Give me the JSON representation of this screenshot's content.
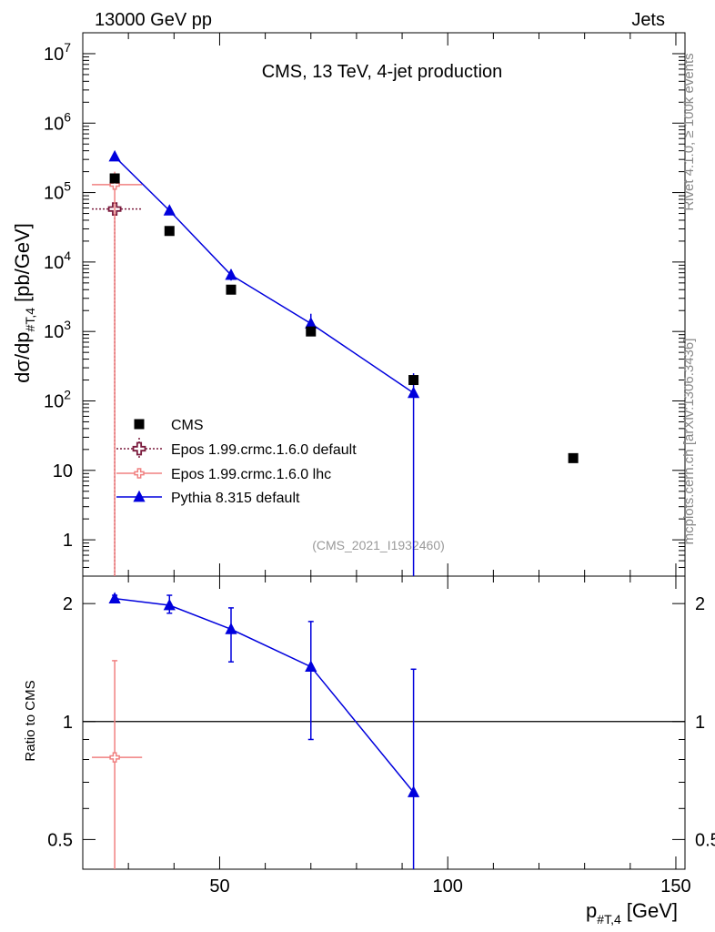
{
  "header": {
    "left": "13000 GeV pp",
    "right": "Jets"
  },
  "side_labels": {
    "rivet": "Rivet 4.1.0, ≥ 100k events",
    "mcplots": "mcplots.cern.ch [arXiv:1306.3436]"
  },
  "chart_data": {
    "type": "line",
    "title": "CMS, 13 TeV, 4-jet production",
    "watermark": "(CMS_2021_I1932460)",
    "xlabel_main": "p",
    "xlabel_sub": "#T,4",
    "xlabel_unit": "[GeV]",
    "ylabel_main": "dσ/dp",
    "ylabel_sub": "#T,4",
    "ylabel_unit": "[pb/GeV]",
    "xlim": [
      20,
      152
    ],
    "ylim": [
      0.3,
      20000000
    ],
    "yscale": "log",
    "x_ticks": [
      50,
      100,
      150
    ],
    "y_ticks": [
      {
        "base": "10",
        "exp": "7"
      },
      {
        "base": "10",
        "exp": "6"
      },
      {
        "base": "10",
        "exp": "5"
      },
      {
        "base": "10",
        "exp": "4"
      },
      {
        "base": "10",
        "exp": "3"
      },
      {
        "base": "10",
        "exp": "2"
      },
      {
        "base": "10",
        "exp": ""
      },
      {
        "base": "1",
        "exp": ""
      }
    ],
    "series": [
      {
        "name": "CMS",
        "style": "square",
        "color": "#000000",
        "x": [
          27,
          39,
          52.5,
          70,
          92.5,
          127.5
        ],
        "y": [
          160000,
          28000,
          4000,
          1000,
          200,
          15
        ]
      },
      {
        "name": "Epos 1.99.crmc.1.6.0 default",
        "style": "open-cross-dotted",
        "color": "#7a1a3c",
        "x": [
          27
        ],
        "xerr": [
          [
            22,
            33
          ]
        ],
        "y": [
          58000
        ],
        "yerr": [
          [
            0.3,
            70000
          ]
        ]
      },
      {
        "name": "Epos 1.99.crmc.1.6.0 lhc",
        "style": "open-cross",
        "color": "#f08080",
        "x": [
          27
        ],
        "xerr": [
          [
            22,
            33
          ]
        ],
        "y": [
          130000
        ],
        "yerr": [
          [
            0.3,
            200000
          ]
        ]
      },
      {
        "name": "Pythia 8.315 default",
        "style": "triangle-line",
        "color": "#0000dd",
        "x": [
          27,
          39,
          52.5,
          70,
          92.5
        ],
        "y": [
          330000,
          55000,
          6500,
          1300,
          130
        ],
        "yerr": [
          [
            330000,
            330000
          ],
          [
            55000,
            55000
          ],
          [
            5400,
            7800
          ],
          [
            1000,
            1800
          ],
          [
            0.3,
            250
          ]
        ]
      }
    ],
    "ratio": {
      "ylabel": "Ratio to CMS",
      "ylim": [
        0.42,
        2.35
      ],
      "ticks": [
        "2",
        "1",
        "0.5"
      ],
      "tick_values": [
        2,
        1,
        0.5
      ],
      "reference": 1,
      "series": [
        {
          "name": "Epos 1.99.crmc.1.6.0 lhc",
          "color": "#f08080",
          "x": [
            27
          ],
          "xerr": [
            [
              22,
              33
            ]
          ],
          "y": [
            0.81
          ],
          "yerr": [
            [
              0.42,
              1.43
            ]
          ]
        },
        {
          "name": "Pythia 8.315 default",
          "color": "#0000dd",
          "x": [
            27,
            39,
            52.5,
            70,
            92.5
          ],
          "y": [
            2.06,
            1.98,
            1.72,
            1.38,
            0.66
          ],
          "yerr": [
            [
              2.01,
              2.1
            ],
            [
              1.89,
              2.1
            ],
            [
              1.42,
              1.95
            ],
            [
              0.9,
              1.8
            ],
            [
              0.42,
              1.36
            ]
          ]
        }
      ]
    }
  }
}
